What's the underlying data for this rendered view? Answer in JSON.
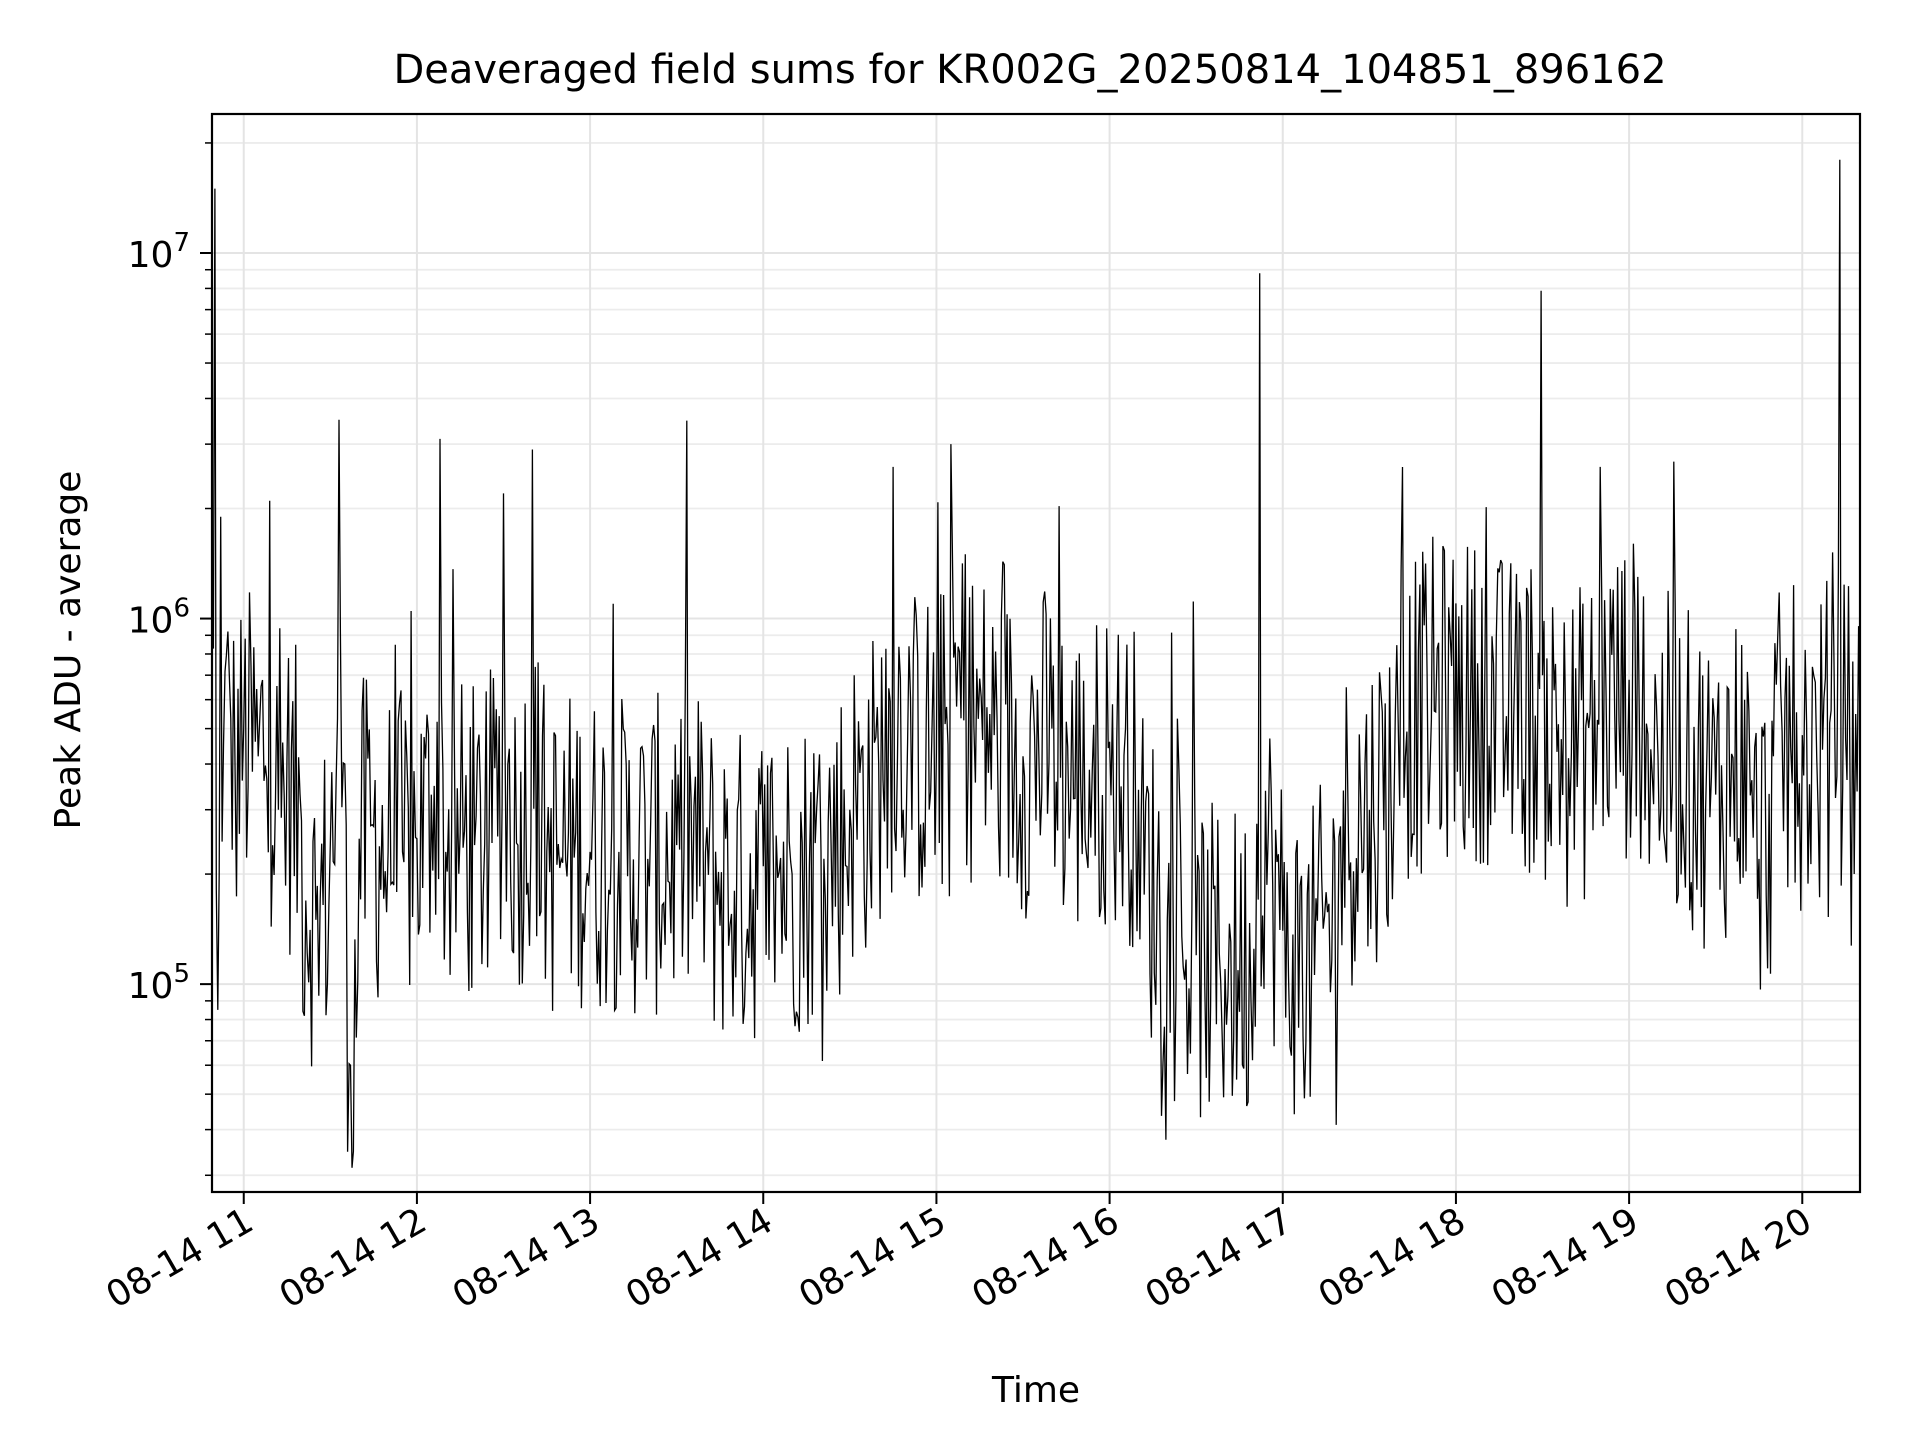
{
  "chart_data": {
    "type": "line",
    "title": "Deaveraged field sums for KR002G_20250814_104851_896162",
    "xlabel": "Time",
    "ylabel": "Peak ADU - average",
    "x_scale": "time",
    "y_scale": "log",
    "xlim": [
      "2025-08-14 10:49",
      "2025-08-14 20:20"
    ],
    "ylim": [
      27000,
      24000000
    ],
    "grid": true,
    "legend": "none",
    "line_color": "#000000",
    "x_ticks": [
      {
        "value": "2025-08-14 11:00",
        "label": "08-14 11"
      },
      {
        "value": "2025-08-14 12:00",
        "label": "08-14 12"
      },
      {
        "value": "2025-08-14 13:00",
        "label": "08-14 13"
      },
      {
        "value": "2025-08-14 14:00",
        "label": "08-14 14"
      },
      {
        "value": "2025-08-14 15:00",
        "label": "08-14 15"
      },
      {
        "value": "2025-08-14 16:00",
        "label": "08-14 16"
      },
      {
        "value": "2025-08-14 17:00",
        "label": "08-14 17"
      },
      {
        "value": "2025-08-14 18:00",
        "label": "08-14 18"
      },
      {
        "value": "2025-08-14 19:00",
        "label": "08-14 19"
      },
      {
        "value": "2025-08-14 20:00",
        "label": "08-14 20"
      }
    ],
    "y_ticks": [
      {
        "value": 100000,
        "base": "10",
        "exp": "5"
      },
      {
        "value": 1000000,
        "base": "10",
        "exp": "6"
      },
      {
        "value": 10000000,
        "base": "10",
        "exp": "7"
      }
    ],
    "series": [
      {
        "x": [
          "2025-08-14 10:49",
          "2025-08-14 10:50",
          "2025-08-14 10:51",
          "2025-08-14 10:52",
          "2025-08-14 10:53",
          "2025-08-14 10:55",
          "2025-08-14 10:57",
          "2025-08-14 11:00",
          "2025-08-14 11:05",
          "2025-08-14 11:09",
          "2025-08-14 11:12",
          "2025-08-14 11:15",
          "2025-08-14 11:20",
          "2025-08-14 11:25",
          "2025-08-14 11:30",
          "2025-08-14 11:33",
          "2025-08-14 11:35",
          "2025-08-14 11:37",
          "2025-08-14 11:40",
          "2025-08-14 11:45",
          "2025-08-14 11:50",
          "2025-08-14 11:55",
          "2025-08-14 12:00",
          "2025-08-14 12:05",
          "2025-08-14 12:08",
          "2025-08-14 12:10",
          "2025-08-14 12:15",
          "2025-08-14 12:20",
          "2025-08-14 12:25",
          "2025-08-14 12:30",
          "2025-08-14 12:35",
          "2025-08-14 12:40",
          "2025-08-14 12:45",
          "2025-08-14 12:50",
          "2025-08-14 12:55",
          "2025-08-14 13:00",
          "2025-08-14 13:10",
          "2025-08-14 13:20",
          "2025-08-14 13:30",
          "2025-08-14 13:40",
          "2025-08-14 13:50",
          "2025-08-14 14:00",
          "2025-08-14 14:10",
          "2025-08-14 14:20",
          "2025-08-14 14:30",
          "2025-08-14 14:40",
          "2025-08-14 14:45",
          "2025-08-14 14:50",
          "2025-08-14 15:00",
          "2025-08-14 15:05",
          "2025-08-14 15:10",
          "2025-08-14 15:20",
          "2025-08-14 15:30",
          "2025-08-14 15:40",
          "2025-08-14 15:50",
          "2025-08-14 16:00",
          "2025-08-14 16:10",
          "2025-08-14 16:20",
          "2025-08-14 16:30",
          "2025-08-14 16:40",
          "2025-08-14 16:50",
          "2025-08-14 16:52",
          "2025-08-14 17:00",
          "2025-08-14 17:10",
          "2025-08-14 17:20",
          "2025-08-14 17:30",
          "2025-08-14 17:40",
          "2025-08-14 17:50",
          "2025-08-14 18:00",
          "2025-08-14 18:10",
          "2025-08-14 18:20",
          "2025-08-14 18:30",
          "2025-08-14 18:40",
          "2025-08-14 18:50",
          "2025-08-14 19:00",
          "2025-08-14 19:05",
          "2025-08-14 19:10",
          "2025-08-14 19:20",
          "2025-08-14 19:30",
          "2025-08-14 19:40",
          "2025-08-14 19:45",
          "2025-08-14 19:50",
          "2025-08-14 20:00",
          "2025-08-14 20:05",
          "2025-08-14 20:10",
          "2025-08-14 20:13",
          "2025-08-14 20:15",
          "2025-08-14 20:20"
        ],
        "y": [
          1300000,
          15000000,
          85000,
          1900000,
          450000,
          700000,
          380000,
          500000,
          420000,
          2100000,
          300000,
          420000,
          280000,
          150000,
          240000,
          3500000,
          400000,
          60000,
          250000,
          270000,
          230000,
          230000,
          250000,
          330000,
          3100000,
          230000,
          260000,
          240000,
          250000,
          2200000,
          240000,
          2900000,
          230000,
          220000,
          260000,
          230000,
          230000,
          220000,
          240000,
          230000,
          180000,
          210000,
          200000,
          230000,
          300000,
          400000,
          2600000,
          460000,
          430000,
          3000000,
          1500000,
          480000,
          420000,
          500000,
          350000,
          460000,
          340000,
          150000,
          120000,
          110000,
          125000,
          8800000,
          140000,
          110000,
          270000,
          300000,
          520000,
          700000,
          1100000,
          680000,
          530000,
          700000,
          430000,
          2600000,
          680000,
          1150000,
          420000,
          450000,
          330000,
          600000,
          220000,
          420000,
          480000,
          420000,
          560000,
          18000000,
          470000,
          500000
        ]
      }
    ]
  }
}
